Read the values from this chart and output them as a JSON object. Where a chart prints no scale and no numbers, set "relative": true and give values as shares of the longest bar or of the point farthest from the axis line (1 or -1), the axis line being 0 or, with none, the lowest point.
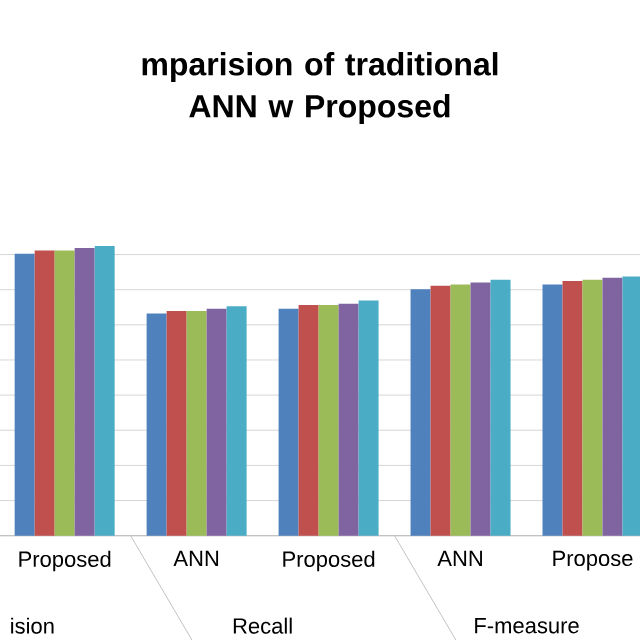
{
  "chart_data": {
    "type": "bar",
    "title": "mparision of traditional ANN w Proposed",
    "relative": true,
    "grid": "y",
    "categories": [
      "Proposed",
      "ANN",
      "Proposed",
      "ANN",
      "Propose"
    ],
    "annotations": [
      "ision",
      "Recall",
      "F-measure"
    ],
    "series": [
      {
        "color": "#4f81bd",
        "values": [
          0.973,
          0.767,
          0.783,
          0.851,
          0.867
        ]
      },
      {
        "color": "#c0504d",
        "values": [
          0.984,
          0.776,
          0.796,
          0.863,
          0.879
        ]
      },
      {
        "color": "#9bbb59",
        "values": [
          0.984,
          0.776,
          0.796,
          0.867,
          0.883
        ]
      },
      {
        "color": "#8064a2",
        "values": [
          0.993,
          0.783,
          0.801,
          0.874,
          0.89
        ]
      },
      {
        "color": "#4bacc6",
        "values": [
          1,
          0.792,
          0.812,
          0.883,
          0.895
        ]
      }
    ]
  }
}
